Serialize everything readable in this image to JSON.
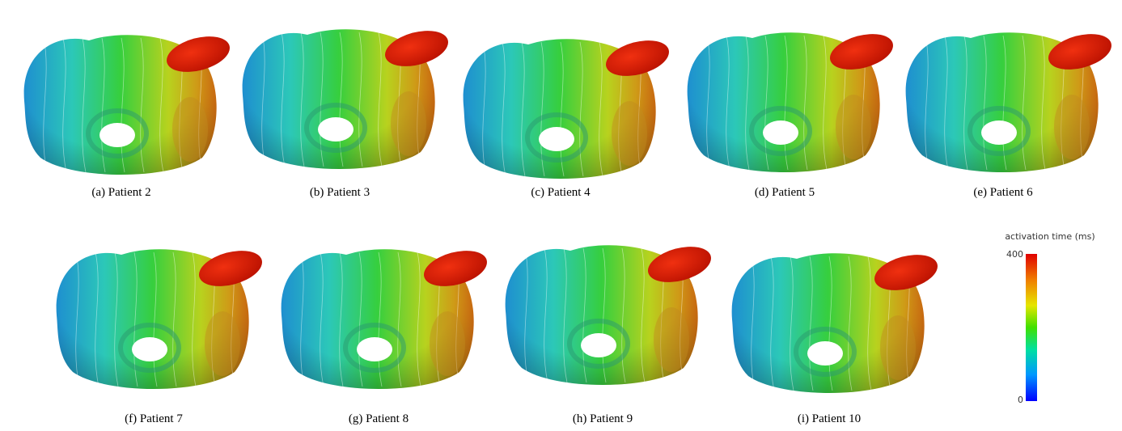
{
  "panels": [
    {
      "label": "(a) Patient 2"
    },
    {
      "label": "(b) Patient 3"
    },
    {
      "label": "(c) Patient 4"
    },
    {
      "label": "(d) Patient 5"
    },
    {
      "label": "(e) Patient 6"
    },
    {
      "label": "(f) Patient 7"
    },
    {
      "label": "(g) Patient 8"
    },
    {
      "label": "(h) Patient 9"
    },
    {
      "label": "(i) Patient 10"
    }
  ],
  "colorbar": {
    "title": "activation time (ms)",
    "max": 400,
    "min": 0
  }
}
